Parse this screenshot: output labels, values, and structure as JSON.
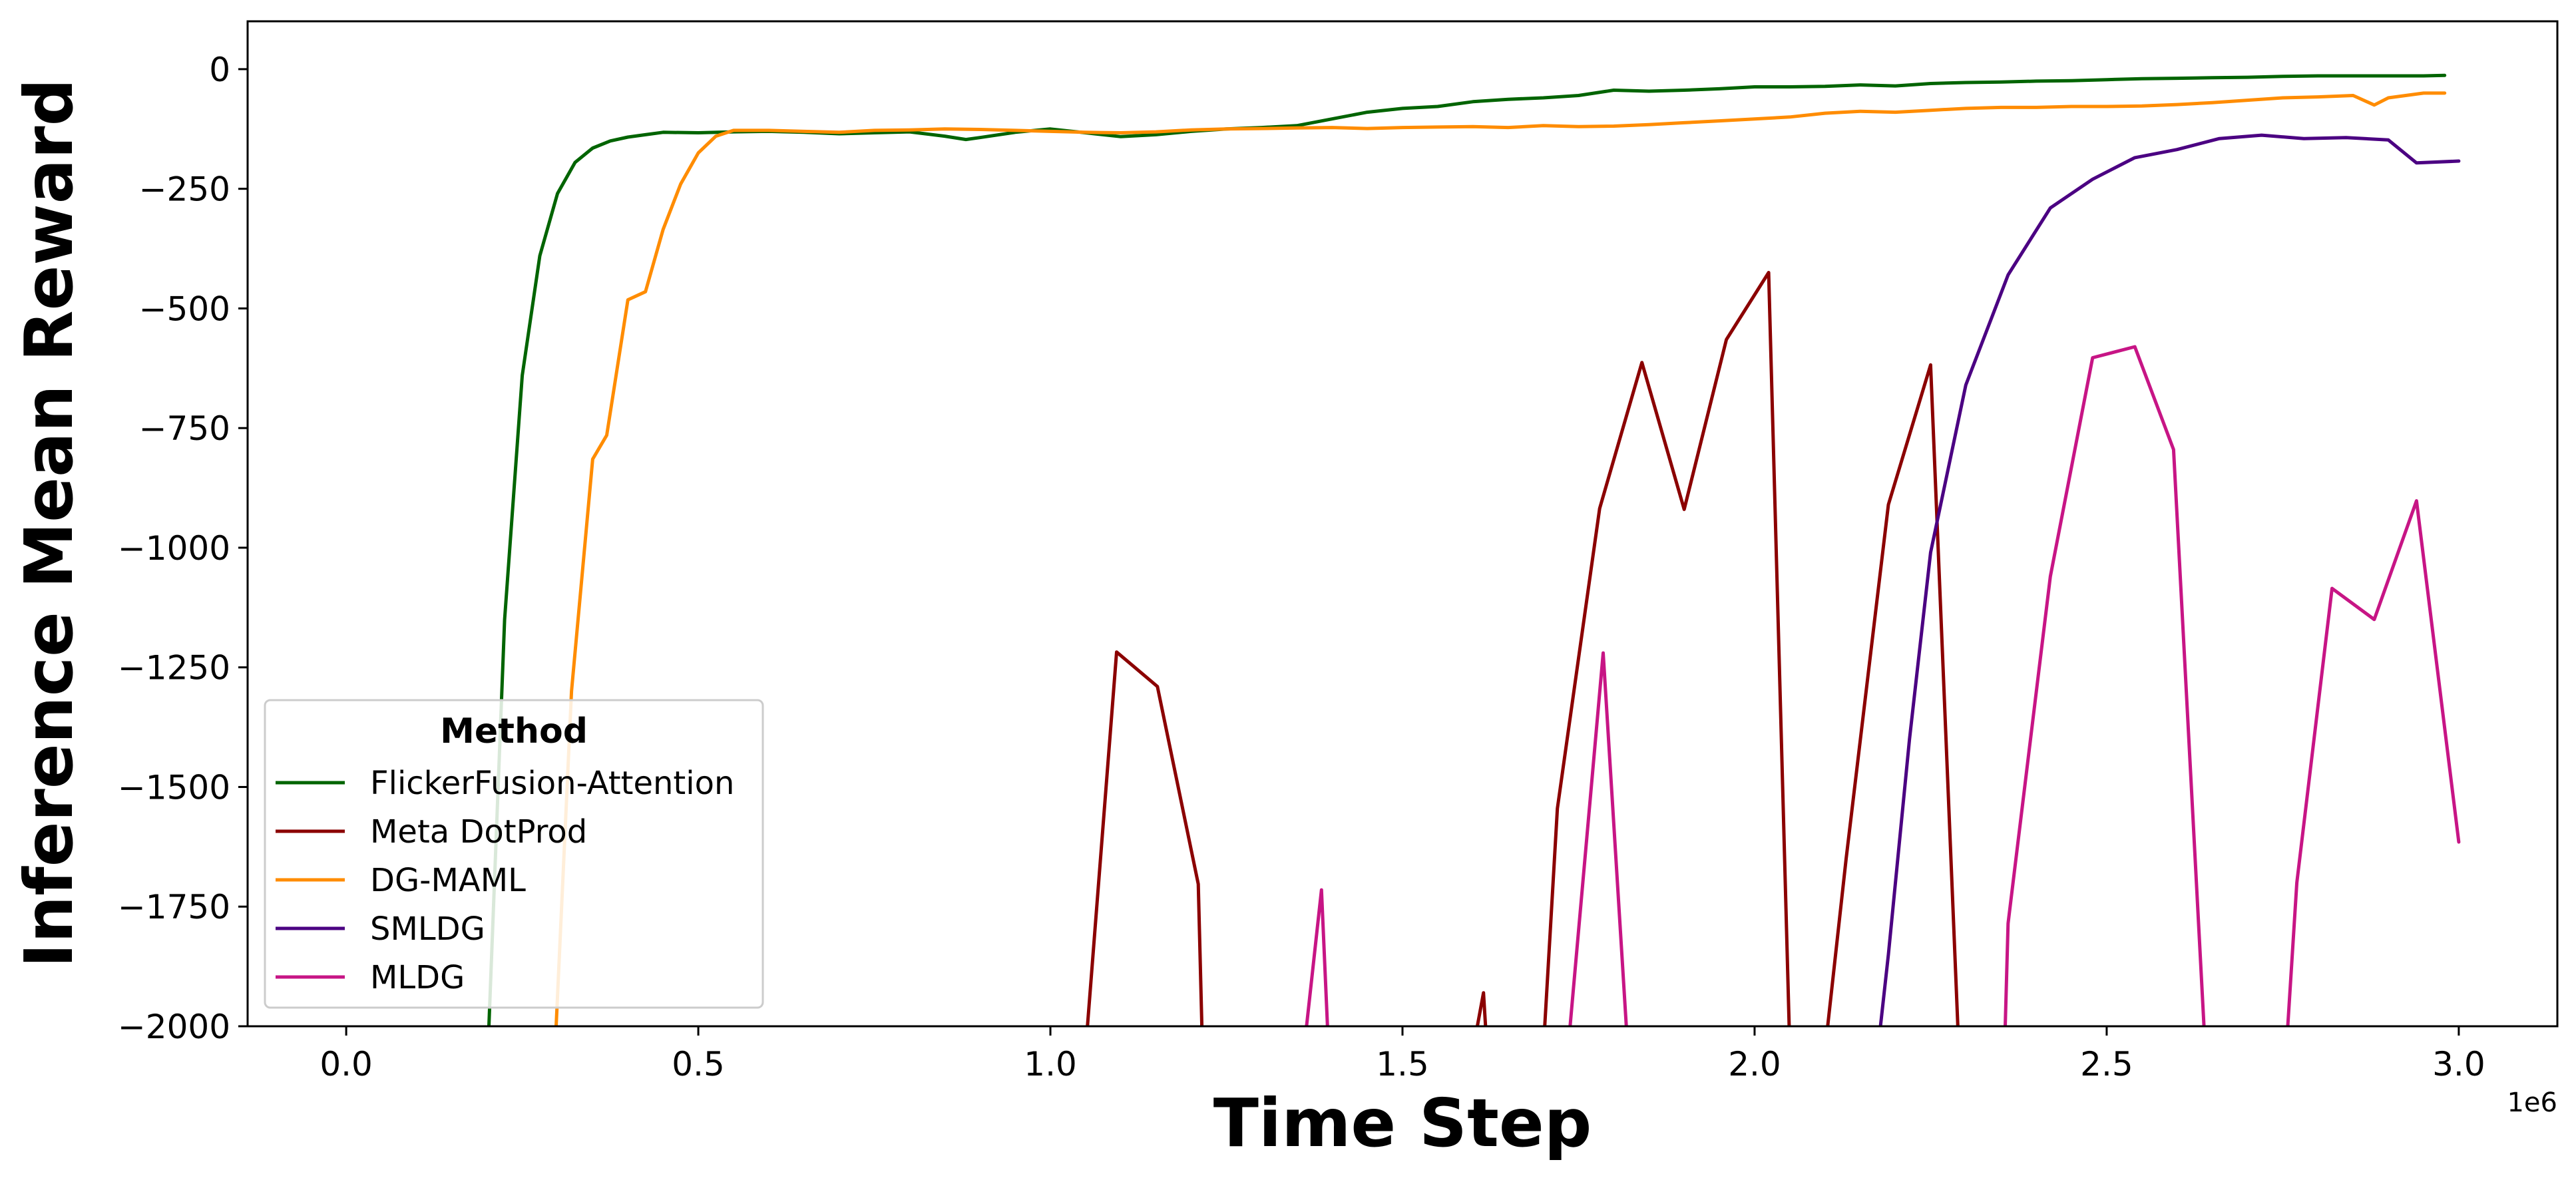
{
  "chart_data": {
    "type": "line",
    "xlabel": "Time Step",
    "ylabel": "Inference Mean Reward",
    "x_offset_label": "1e6",
    "xlim": [
      -0.14,
      3.14
    ],
    "ylim": [
      -2000,
      100
    ],
    "xticks": [
      0.0,
      0.5,
      1.0,
      1.5,
      2.0,
      2.5,
      3.0
    ],
    "xtick_labels": [
      "0.0",
      "0.5",
      "1.0",
      "1.5",
      "2.0",
      "2.5",
      "3.0"
    ],
    "yticks": [
      0,
      -250,
      -500,
      -750,
      -1000,
      -1250,
      -1500,
      -1750,
      -2000
    ],
    "ytick_labels": [
      "0",
      "−250",
      "−500",
      "−750",
      "−1000",
      "−1250",
      "−1500",
      "−1750",
      "−2000"
    ],
    "grid": false,
    "legend": {
      "title": "Method",
      "placement": "lower-left"
    },
    "series": [
      {
        "name": "FlickerFusion-Attention",
        "color": "#006400",
        "x": [
          0.2,
          0.225,
          0.25,
          0.275,
          0.3,
          0.325,
          0.35,
          0.375,
          0.4,
          0.425,
          0.45,
          0.5,
          0.55,
          0.6,
          0.65,
          0.7,
          0.75,
          0.8,
          0.85,
          0.88,
          0.9,
          0.95,
          1.0,
          1.05,
          1.1,
          1.15,
          1.2,
          1.25,
          1.3,
          1.35,
          1.4,
          1.45,
          1.5,
          1.55,
          1.6,
          1.65,
          1.7,
          1.75,
          1.8,
          1.85,
          1.9,
          1.95,
          2.0,
          2.05,
          2.1,
          2.15,
          2.2,
          2.25,
          2.3,
          2.35,
          2.4,
          2.45,
          2.5,
          2.55,
          2.6,
          2.65,
          2.7,
          2.75,
          2.8,
          2.85,
          2.9,
          2.95,
          2.98
        ],
        "values": [
          -2100,
          -1150,
          -640,
          -390,
          -260,
          -195,
          -165,
          -150,
          -142,
          -137,
          -132,
          -133,
          -131,
          -130,
          -132,
          -135,
          -133,
          -131,
          -140,
          -147,
          -143,
          -132,
          -125,
          -133,
          -141,
          -137,
          -130,
          -125,
          -122,
          -118,
          -104,
          -90,
          -82,
          -78,
          -68,
          -63,
          -60,
          -55,
          -44,
          -46,
          -44,
          -41,
          -37,
          -37,
          -36,
          -33,
          -35,
          -30,
          -28,
          -27,
          -25,
          -24,
          -22,
          -20,
          -19,
          -18,
          -17,
          -15,
          -14,
          -14,
          -14,
          -14,
          -13
        ]
      },
      {
        "name": "Meta DotProd",
        "color": "#8B0000",
        "x": [
          1.05,
          1.094,
          1.152,
          1.21,
          1.216,
          1.6,
          1.615,
          1.62,
          1.7,
          1.72,
          1.78,
          1.84,
          1.9,
          1.96,
          2.02,
          2.05,
          2.1,
          2.13,
          2.19,
          2.25,
          2.29,
          2.31
        ],
        "values": [
          -2050,
          -1218,
          -1290,
          -1703,
          -2050,
          -2050,
          -1930,
          -2050,
          -2050,
          -1545,
          -918,
          -613,
          -920,
          -565,
          -425,
          -2050,
          -2050,
          -1650,
          -910,
          -618,
          -2050,
          -2050
        ]
      },
      {
        "name": "DG-MAML",
        "color": "#FF8C00",
        "x": [
          0.295,
          0.32,
          0.35,
          0.37,
          0.4,
          0.425,
          0.45,
          0.475,
          0.5,
          0.525,
          0.55,
          0.6,
          0.65,
          0.7,
          0.75,
          0.8,
          0.85,
          0.9,
          0.95,
          1.0,
          1.05,
          1.1,
          1.15,
          1.2,
          1.25,
          1.3,
          1.35,
          1.4,
          1.45,
          1.5,
          1.55,
          1.6,
          1.65,
          1.7,
          1.75,
          1.8,
          1.85,
          1.9,
          1.95,
          2.0,
          2.05,
          2.1,
          2.15,
          2.2,
          2.25,
          2.3,
          2.35,
          2.4,
          2.45,
          2.5,
          2.55,
          2.6,
          2.65,
          2.7,
          2.75,
          2.8,
          2.85,
          2.88,
          2.9,
          2.95,
          2.98
        ],
        "values": [
          -2100,
          -1300,
          -815,
          -765,
          -482,
          -465,
          -335,
          -240,
          -175,
          -140,
          -128,
          -128,
          -130,
          -132,
          -128,
          -127,
          -125,
          -126,
          -128,
          -130,
          -132,
          -133,
          -131,
          -127,
          -125,
          -124,
          -123,
          -122,
          -124,
          -122,
          -121,
          -120,
          -122,
          -118,
          -120,
          -119,
          -116,
          -112,
          -108,
          -104,
          -100,
          -92,
          -88,
          -90,
          -86,
          -82,
          -80,
          -80,
          -78,
          -78,
          -77,
          -74,
          -70,
          -65,
          -60,
          -58,
          -55,
          -75,
          -60,
          -50,
          -50
        ]
      },
      {
        "name": "SMLDG",
        "color": "#4B0082",
        "x": [
          2.175,
          2.19,
          2.22,
          2.25,
          2.3,
          2.36,
          2.42,
          2.48,
          2.54,
          2.6,
          2.66,
          2.72,
          2.78,
          2.84,
          2.9,
          2.94,
          3.0
        ],
        "values": [
          -2050,
          -1850,
          -1400,
          -1010,
          -660,
          -430,
          -290,
          -230,
          -185,
          -168,
          -145,
          -138,
          -145,
          -143,
          -148,
          -196,
          -192
        ]
      },
      {
        "name": "MLDG",
        "color": "#C71585",
        "x": [
          1.36,
          1.385,
          1.395,
          1.735,
          1.785,
          1.82,
          2.355,
          2.36,
          2.42,
          2.48,
          2.54,
          2.595,
          2.64,
          2.755,
          2.77,
          2.82,
          2.88,
          2.94,
          3.0
        ],
        "values": [
          -2050,
          -1715,
          -2050,
          -2050,
          -1220,
          -2050,
          -2050,
          -1785,
          -1060,
          -603,
          -580,
          -795,
          -2050,
          -2050,
          -1700,
          -1085,
          -1150,
          -902,
          -1615
        ]
      }
    ]
  }
}
